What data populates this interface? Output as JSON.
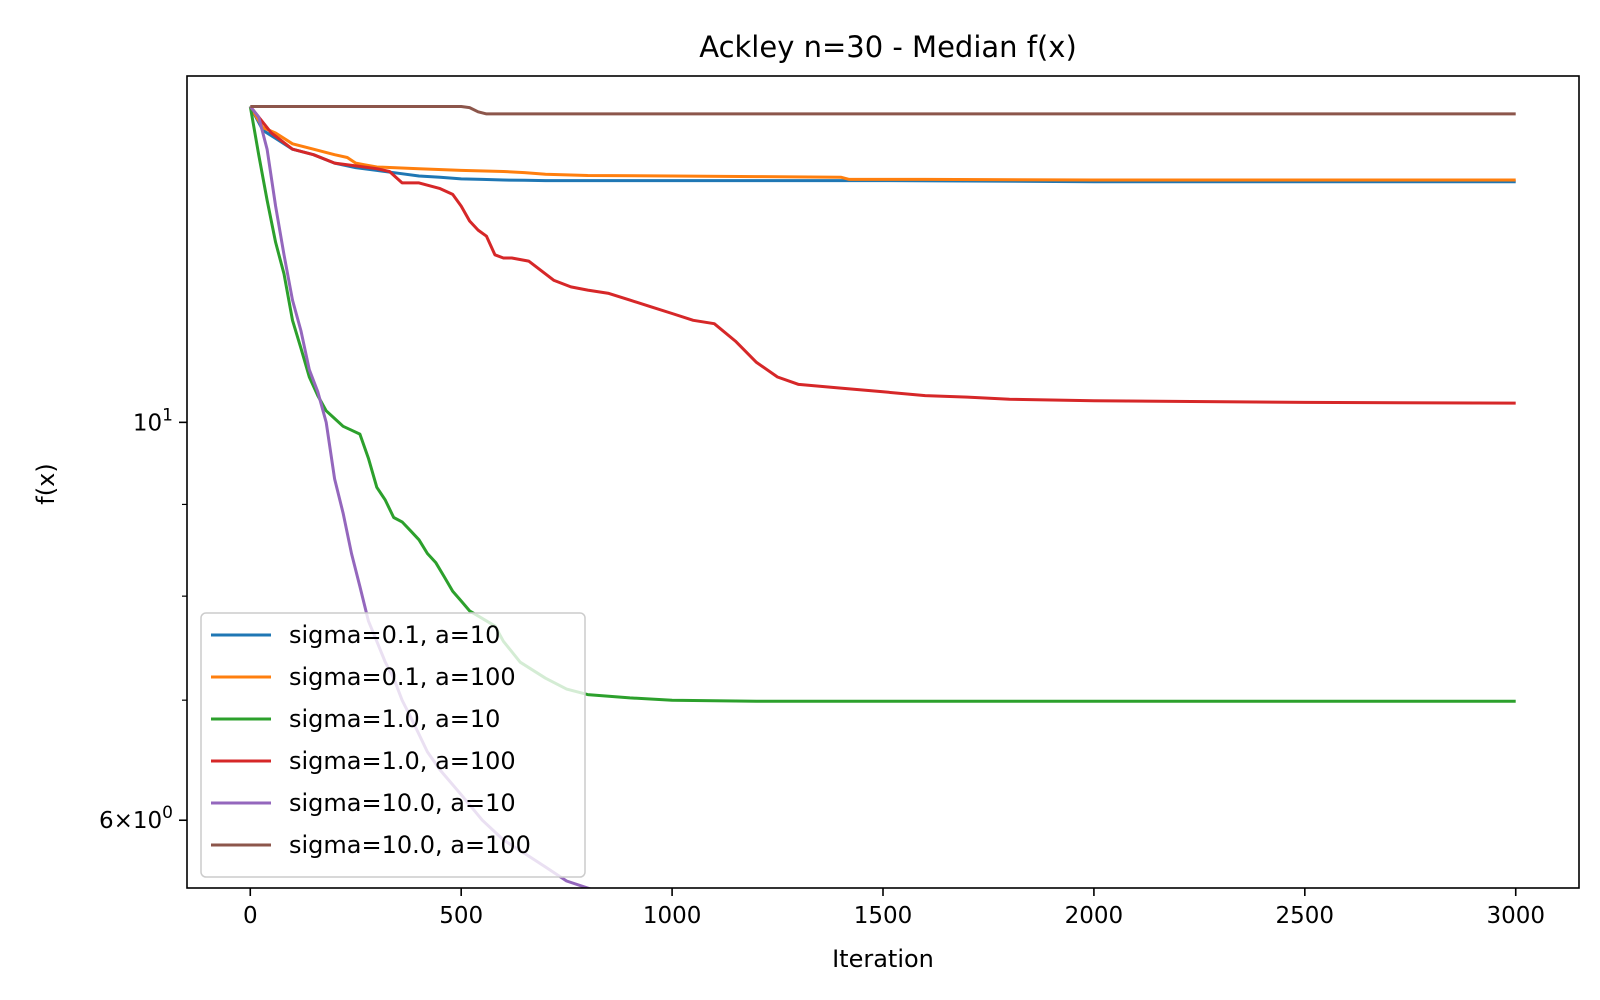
{
  "chart_data": {
    "type": "line",
    "title": "Ackley n=30 - Median f(x)",
    "xlabel": "Iteration",
    "ylabel": "f(x)",
    "xlim": [
      -150,
      3150
    ],
    "ylim": [
      5.5,
      15.6
    ],
    "yscale": "log",
    "grid": false,
    "legend_position": "lower-left",
    "xticks": [
      0,
      500,
      1000,
      1500,
      2000,
      2500,
      3000
    ],
    "xtick_labels": [
      "0",
      "500",
      "1000",
      "1500",
      "2000",
      "2500",
      "3000"
    ],
    "yticks_major": [
      {
        "value": 10,
        "base": "10",
        "exp": "1"
      },
      {
        "value": 6,
        "mant": "6",
        "base": "10",
        "exp": "0"
      }
    ],
    "yticks_minor": [
      7,
      8,
      9
    ],
    "series": [
      {
        "name": "sigma=0.1, a=10",
        "color": "#1f77b4",
        "x": [
          0,
          30,
          60,
          100,
          150,
          200,
          250,
          300,
          350,
          400,
          450,
          500,
          550,
          600,
          650,
          700,
          800,
          1000,
          1500,
          2000,
          3000
        ],
        "y": [
          15.0,
          14.55,
          14.4,
          14.2,
          14.1,
          13.95,
          13.87,
          13.82,
          13.77,
          13.72,
          13.7,
          13.67,
          13.66,
          13.65,
          13.645,
          13.64,
          13.64,
          13.64,
          13.64,
          13.62,
          13.62
        ]
      },
      {
        "name": "sigma=0.1, a=100",
        "color": "#ff7f0e",
        "x": [
          0,
          30,
          60,
          100,
          150,
          200,
          230,
          250,
          270,
          300,
          400,
          500,
          600,
          650,
          700,
          800,
          1000,
          1200,
          1400,
          1410,
          1420,
          1600,
          2000,
          3000
        ],
        "y": [
          15.0,
          14.6,
          14.5,
          14.3,
          14.2,
          14.1,
          14.05,
          13.95,
          13.92,
          13.88,
          13.85,
          13.82,
          13.8,
          13.78,
          13.75,
          13.73,
          13.72,
          13.71,
          13.7,
          13.68,
          13.66,
          13.66,
          13.65,
          13.65
        ]
      },
      {
        "name": "sigma=1.0, a=10",
        "color": "#2ca02c",
        "x": [
          0,
          20,
          40,
          60,
          80,
          100,
          120,
          140,
          160,
          180,
          200,
          220,
          240,
          260,
          280,
          300,
          320,
          340,
          360,
          380,
          400,
          420,
          440,
          460,
          480,
          500,
          520,
          540,
          560,
          580,
          600,
          640,
          700,
          750,
          800,
          900,
          1000,
          1200,
          1500,
          2000,
          3000
        ],
        "y": [
          15.0,
          14.1,
          13.3,
          12.6,
          12.1,
          11.4,
          11.0,
          10.6,
          10.35,
          10.15,
          10.05,
          9.95,
          9.9,
          9.85,
          9.55,
          9.2,
          9.05,
          8.85,
          8.8,
          8.7,
          8.6,
          8.45,
          8.35,
          8.2,
          8.05,
          7.95,
          7.85,
          7.8,
          7.75,
          7.7,
          7.55,
          7.35,
          7.2,
          7.1,
          7.05,
          7.02,
          7.0,
          6.99,
          6.99,
          6.99,
          6.99
        ]
      },
      {
        "name": "sigma=1.0, a=100",
        "color": "#d62728",
        "x": [
          0,
          50,
          100,
          150,
          200,
          250,
          300,
          330,
          360,
          380,
          400,
          450,
          480,
          500,
          520,
          540,
          560,
          580,
          600,
          620,
          660,
          700,
          720,
          740,
          760,
          800,
          850,
          900,
          950,
          1000,
          1050,
          1100,
          1150,
          1200,
          1250,
          1300,
          1400,
          1500,
          1600,
          1700,
          1800,
          2000,
          2500,
          3000
        ],
        "y": [
          15.0,
          14.5,
          14.2,
          14.1,
          13.95,
          13.9,
          13.85,
          13.8,
          13.6,
          13.6,
          13.6,
          13.5,
          13.4,
          13.2,
          12.95,
          12.8,
          12.7,
          12.4,
          12.35,
          12.35,
          12.3,
          12.1,
          12.0,
          11.95,
          11.9,
          11.85,
          11.8,
          11.7,
          11.6,
          11.5,
          11.4,
          11.35,
          11.1,
          10.8,
          10.6,
          10.5,
          10.45,
          10.4,
          10.35,
          10.33,
          10.3,
          10.28,
          10.26,
          10.25
        ]
      },
      {
        "name": "sigma=10.0, a=10",
        "color": "#9467bd",
        "x": [
          0,
          20,
          40,
          60,
          80,
          100,
          120,
          140,
          160,
          180,
          200,
          220,
          240,
          260,
          280,
          300,
          320,
          340,
          360,
          380,
          400,
          420,
          450,
          500,
          550,
          600,
          650,
          700,
          750,
          800,
          850,
          900,
          1000,
          1200,
          1500,
          2000,
          3000
        ],
        "y": [
          15.0,
          14.8,
          14.2,
          13.2,
          12.4,
          11.7,
          11.25,
          10.7,
          10.4,
          10.0,
          9.3,
          8.9,
          8.45,
          8.1,
          7.75,
          7.55,
          7.35,
          7.2,
          7.0,
          6.85,
          6.7,
          6.55,
          6.4,
          6.2,
          6.0,
          5.85,
          5.75,
          5.65,
          5.55,
          5.5,
          5.45,
          5.42,
          5.4,
          5.39,
          5.39,
          5.39,
          5.39
        ]
      },
      {
        "name": "sigma=10.0, a=100",
        "color": "#8c564b",
        "x": [
          0,
          500,
          520,
          540,
          560,
          1000,
          2000,
          3000
        ],
        "y": [
          15.0,
          15.0,
          14.98,
          14.9,
          14.86,
          14.86,
          14.86,
          14.86
        ]
      }
    ]
  }
}
